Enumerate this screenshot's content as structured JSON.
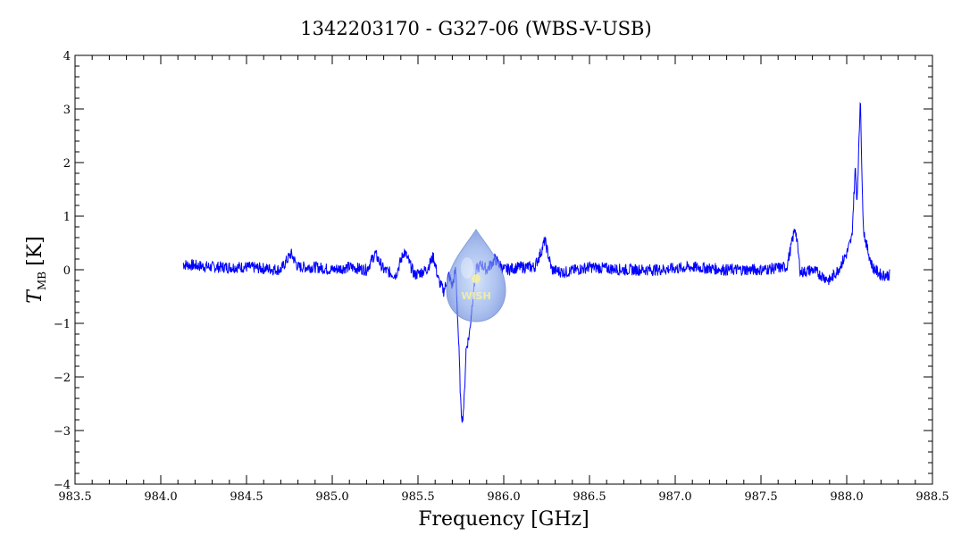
{
  "chart_data": {
    "type": "line",
    "title": "1342203170 - G327-06 (WBS-V-USB)",
    "xlabel": "Frequency [GHz]",
    "ylabel_main": "T",
    "ylabel_sub": "MB",
    "ylabel_unit": "[K]",
    "xlim": [
      983.5,
      988.5
    ],
    "ylim": [
      -4,
      4
    ],
    "xticks": [
      "983.5",
      "984.0",
      "984.5",
      "985.0",
      "985.5",
      "986.0",
      "986.5",
      "987.0",
      "987.5",
      "988.0",
      "988.5"
    ],
    "yticks": [
      "4",
      "3",
      "2",
      "1",
      "0",
      "−1",
      "−2",
      "−3",
      "−4"
    ],
    "grid": false,
    "line_color": "#0000ff",
    "series": [
      {
        "x": [
          984.13,
          984.3,
          984.5,
          984.7,
          984.76,
          984.8,
          984.9,
          985.0,
          985.1,
          985.2,
          985.25,
          985.3,
          985.37,
          985.42,
          985.48,
          985.55,
          985.59,
          985.62,
          985.65,
          985.68,
          985.7,
          985.72,
          985.74,
          985.75,
          985.76,
          985.77,
          985.78,
          985.8,
          985.82,
          985.84,
          985.87,
          985.9,
          985.95,
          986.0,
          986.1,
          986.18,
          986.22,
          986.24,
          986.28,
          986.35,
          986.5,
          986.7,
          986.9,
          987.1,
          987.3,
          987.5,
          987.65,
          987.7,
          987.73,
          987.8,
          987.9,
          987.95,
          988.0,
          988.03,
          988.05,
          988.06,
          988.07,
          988.08,
          988.09,
          988.1,
          988.12,
          988.15,
          988.2,
          988.25
        ],
        "y": [
          0.1,
          0.05,
          0.05,
          0.0,
          0.3,
          0.05,
          0.05,
          0.0,
          0.05,
          0.0,
          0.3,
          0.0,
          -0.1,
          0.35,
          -0.1,
          0.0,
          0.25,
          -0.2,
          -0.4,
          -0.1,
          -0.3,
          0.0,
          -1.6,
          -2.6,
          -2.8,
          -2.4,
          -1.5,
          -1.2,
          -0.5,
          0.0,
          0.1,
          0.0,
          0.2,
          0.0,
          0.05,
          0.05,
          0.35,
          0.55,
          0.0,
          -0.05,
          0.05,
          0.0,
          0.0,
          0.05,
          0.0,
          0.0,
          0.05,
          0.8,
          -0.05,
          0.0,
          -0.2,
          0.0,
          0.3,
          0.6,
          1.9,
          1.3,
          2.2,
          3.3,
          1.5,
          0.7,
          0.4,
          0.05,
          -0.1,
          -0.1
        ]
      }
    ]
  },
  "watermark": {
    "text": "WISH"
  }
}
